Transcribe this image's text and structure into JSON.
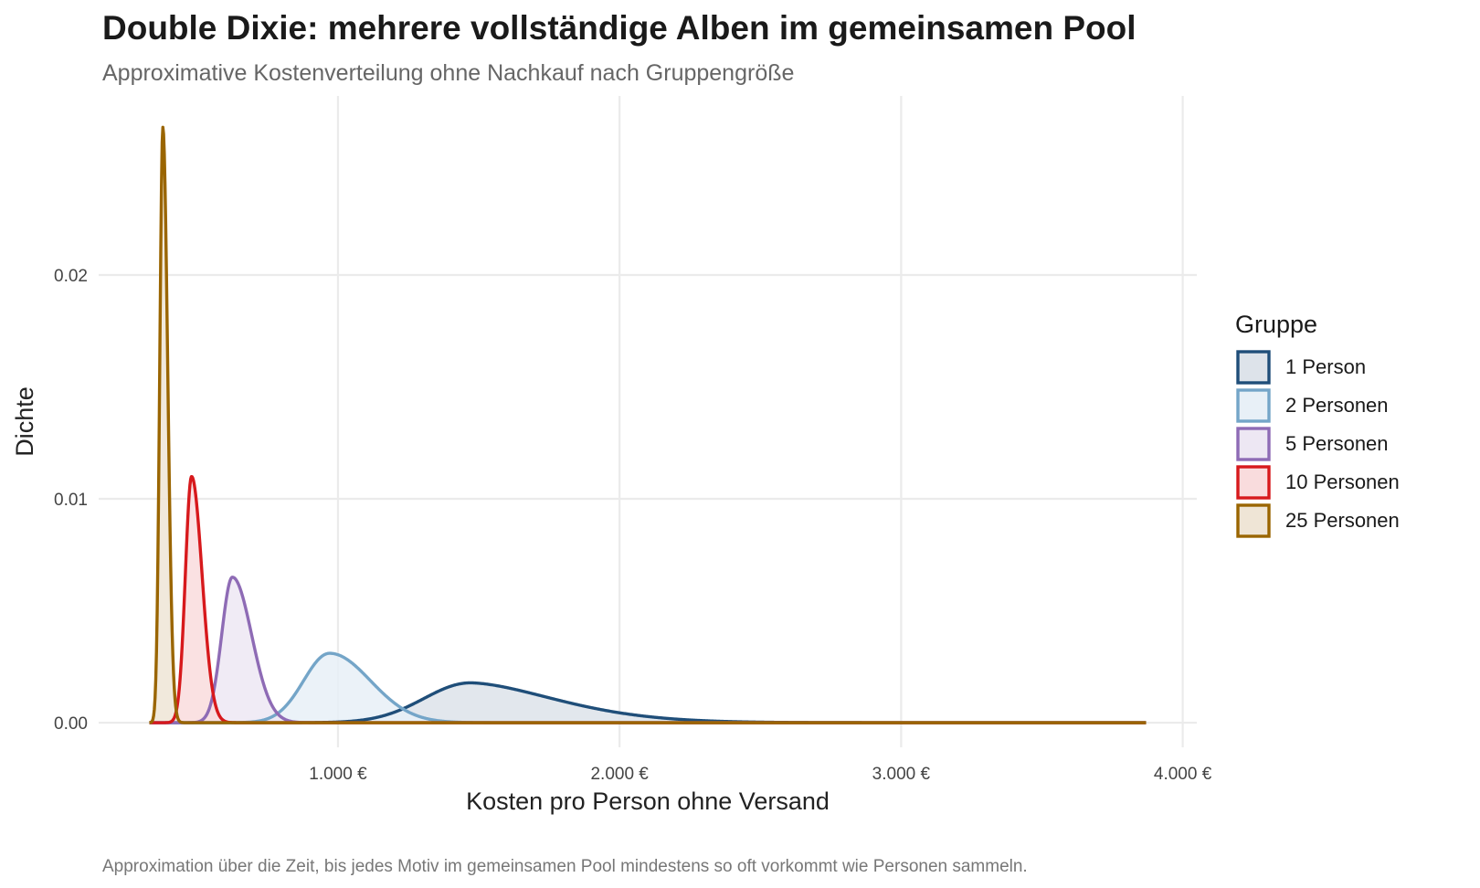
{
  "title": "Double Dixie: mehrere vollständige Alben im gemeinsamen Pool",
  "subtitle": "Approximative Kostenverteilung ohne Nachkauf nach Gruppengröße",
  "caption": "Approximation über die Zeit, bis jedes Motiv im gemeinsamen Pool mindestens so oft vorkommt wie Personen sammeln.",
  "chart_data": {
    "type": "area",
    "xlabel": "Kosten pro Person ohne Versand",
    "ylabel": "Dichte",
    "xlim": [
      150,
      4050
    ],
    "ylim": [
      -0.0011,
      0.028
    ],
    "x_ticks": [
      1000,
      2000,
      3000,
      4000
    ],
    "x_tick_labels": [
      "1.000 €",
      "2.000 €",
      "3.000 €",
      "4.000 €"
    ],
    "y_ticks": [
      0,
      0.01,
      0.02
    ],
    "y_tick_labels": [
      "0.00",
      "0.01",
      "0.02"
    ],
    "grid": true,
    "legend": {
      "title": "Gruppe",
      "position": "right"
    },
    "x_range": [
      330,
      3870
    ],
    "series": [
      {
        "name": "1 Person",
        "color": "#1f4e79",
        "fill": "#dde3ea",
        "peak_x": 1470,
        "peak_y": 0.00178,
        "sd_left": 165,
        "sd_right": 290,
        "tail_power": 0.85
      },
      {
        "name": "2 Personen",
        "color": "#74a5c8",
        "fill": "#e8f0f7",
        "peak_x": 970,
        "peak_y": 0.0031,
        "sd_left": 92,
        "sd_right": 145,
        "tail_power": 1.0
      },
      {
        "name": "5 Personen",
        "color": "#8e6bb5",
        "fill": "#ede7f3",
        "peak_x": 625,
        "peak_y": 0.0065,
        "sd_left": 38,
        "sd_right": 68,
        "tail_power": 1.0
      },
      {
        "name": "10 Personen",
        "color": "#d7191c",
        "fill": "#f9dcdd",
        "peak_x": 480,
        "peak_y": 0.011,
        "sd_left": 22,
        "sd_right": 37,
        "tail_power": 1.0
      },
      {
        "name": "25 Personen",
        "color": "#9a6500",
        "fill": "#efe5d6",
        "peak_x": 378,
        "peak_y": 0.0266,
        "sd_left": 11,
        "sd_right": 17,
        "tail_power": 1.0
      }
    ]
  }
}
